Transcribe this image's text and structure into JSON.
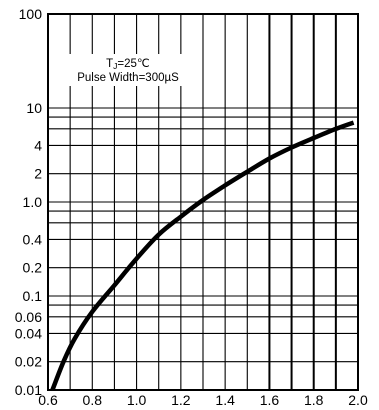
{
  "chart_data": {
    "type": "line",
    "title": "",
    "xlabel": "",
    "ylabel": "",
    "xlim": [
      0.6,
      2.0
    ],
    "ylim": [
      0.01,
      100
    ],
    "y_scale": "log",
    "grid": true,
    "x_ticks": [
      0.6,
      0.7,
      0.8,
      0.9,
      1.0,
      1.1,
      1.2,
      1.3,
      1.4,
      1.5,
      1.6,
      1.7,
      1.8,
      1.9,
      2.0
    ],
    "x_tick_labels": [
      "0.6",
      "0.8",
      "1.0",
      "1.2",
      "1.4",
      "1.6",
      "1.8",
      "2.0"
    ],
    "x_tick_label_values": [
      0.6,
      0.8,
      1.0,
      1.2,
      1.4,
      1.6,
      1.8,
      2.0
    ],
    "y_grid_values": [
      0.01,
      0.02,
      0.04,
      0.06,
      0.08,
      0.1,
      0.2,
      0.4,
      0.6,
      0.8,
      1.0,
      2,
      4,
      6,
      8,
      10,
      100
    ],
    "y_tick_labels": [
      "100",
      "10",
      "4",
      "2",
      "1.0",
      "0.4",
      "0.2",
      "0.1",
      "0.06",
      "0.04",
      "0.02",
      "0.01"
    ],
    "y_tick_label_values": [
      100,
      10,
      4,
      2,
      1.0,
      0.4,
      0.2,
      0.1,
      0.06,
      0.04,
      0.02,
      0.01
    ],
    "annotation": {
      "line1_main": "T",
      "line1_sub": "J",
      "line1_rest": "=25℃",
      "line2": "Pulse Width=300µS"
    },
    "series": [
      {
        "x": [
          0.62,
          0.67,
          0.72,
          0.8,
          0.9,
          1.0,
          1.1,
          1.2,
          1.3,
          1.4,
          1.5,
          1.6,
          1.7,
          1.8,
          1.9,
          1.98
        ],
        "y": [
          0.01,
          0.02,
          0.035,
          0.068,
          0.13,
          0.25,
          0.45,
          0.7,
          1.05,
          1.5,
          2.1,
          2.9,
          3.8,
          4.8,
          6.0,
          7.0
        ]
      }
    ]
  }
}
